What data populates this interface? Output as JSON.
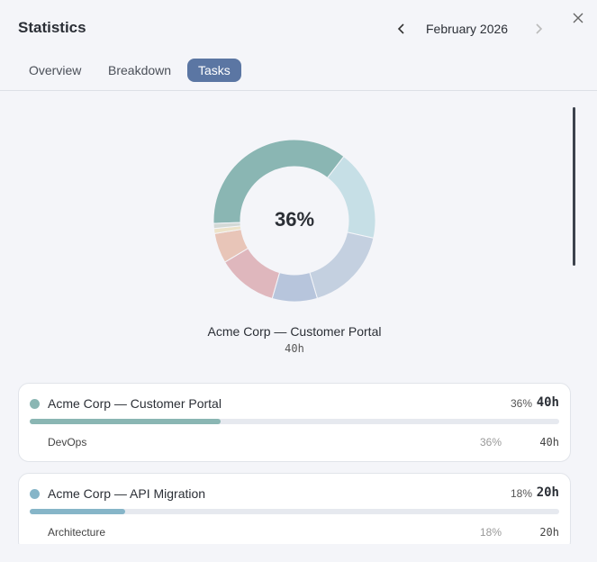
{
  "header": {
    "title": "Statistics",
    "month": "February 2026"
  },
  "tabs": [
    "Overview",
    "Breakdown",
    "Tasks"
  ],
  "chart_data": {
    "type": "pie",
    "values": [
      36,
      18,
      17,
      9,
      12,
      6,
      1,
      1
    ],
    "colors": [
      "#8ab6b3",
      "#c6dfe6",
      "#c4d0e0",
      "#b7c5dc",
      "#dfb7bd",
      "#e8c5b8",
      "#ede3c9",
      "#d3d9d6"
    ],
    "center_label": "36%",
    "selected_name": "Acme Corp — Customer Portal",
    "selected_hours": "40h"
  },
  "cards": [
    {
      "name": "Acme Corp — Customer Portal",
      "color": "#8ab6b3",
      "value": 36,
      "value_label": "36%",
      "hours": "40h",
      "rows": [
        {
          "label": "DevOps",
          "value_label": "36%",
          "hours": "40h"
        }
      ]
    },
    {
      "name": "Acme Corp — API Migration",
      "color": "#86b5c8",
      "value": 18,
      "value_label": "18%",
      "hours": "20h",
      "rows": [
        {
          "label": "Architecture",
          "value_label": "18%",
          "hours": "20h"
        }
      ]
    }
  ]
}
